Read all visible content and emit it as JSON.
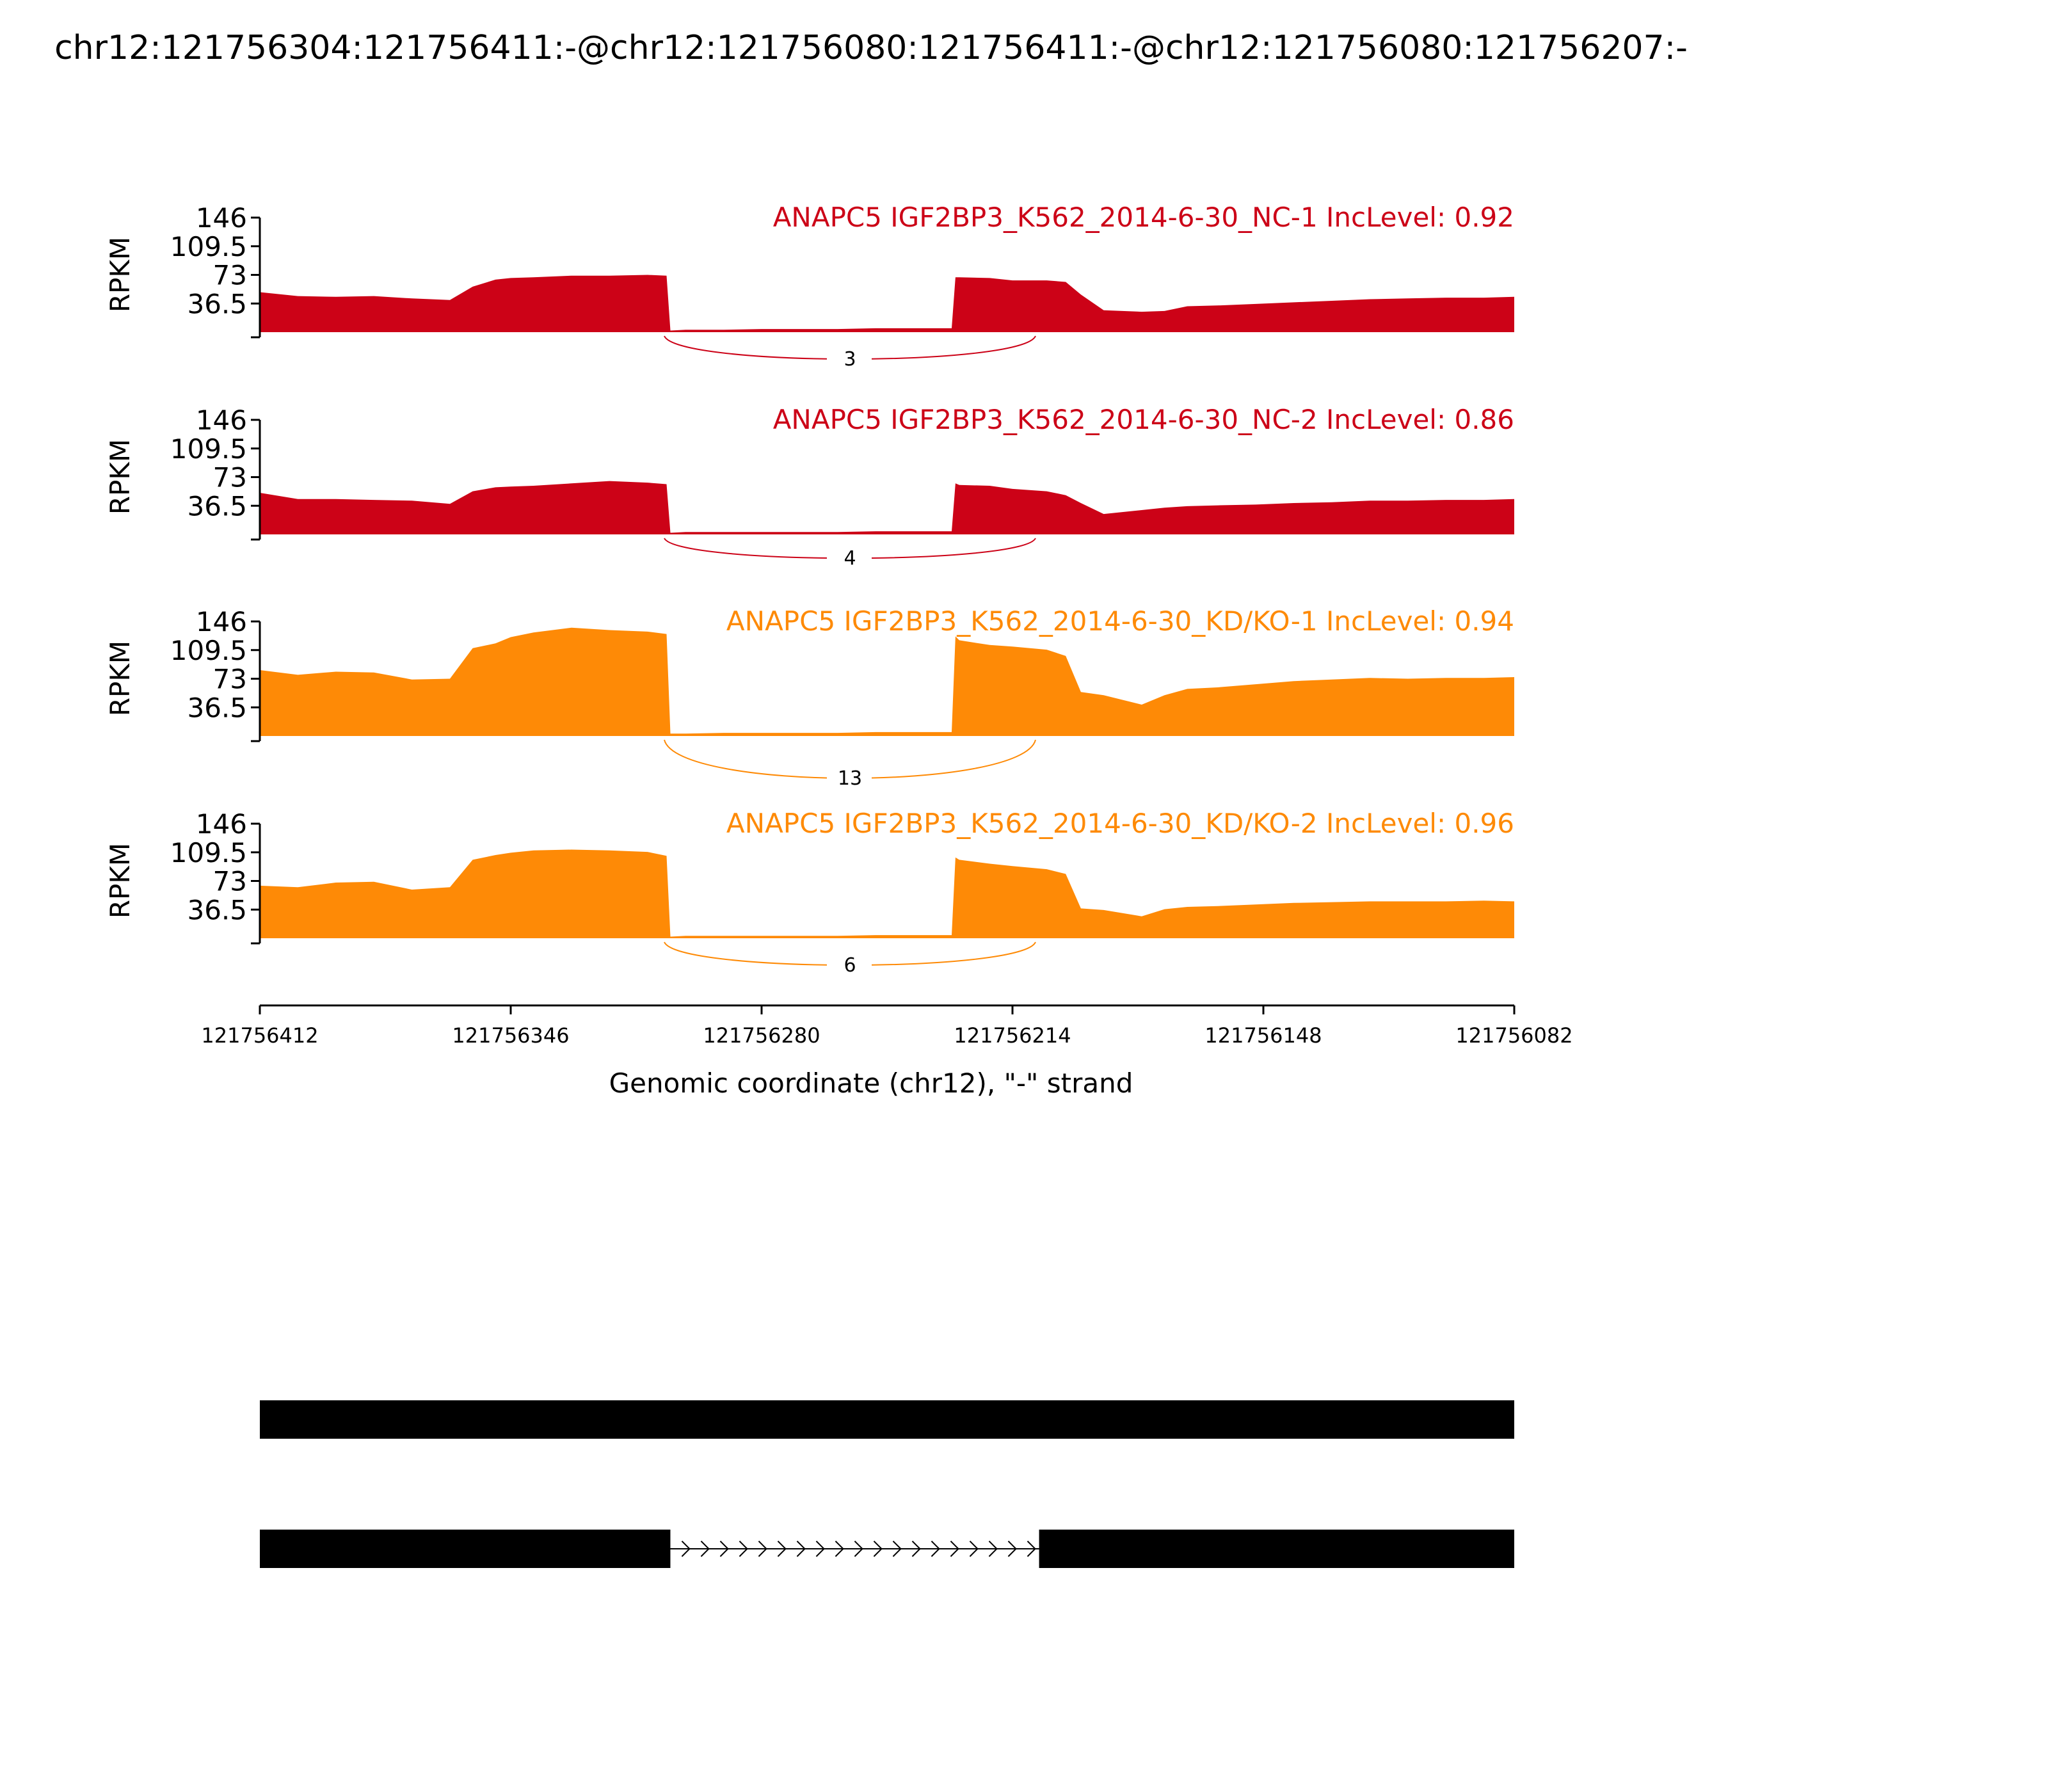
{
  "chart_data": {
    "type": "area",
    "title": "chr12:121756304:121756411:-@chr12:121756080:121756411:-@chr12:121756080:121756207:-",
    "ylabel": "RPKM",
    "xlabel": "Genomic coordinate (chr12), \"-\" strand",
    "ylim": [
      0,
      146
    ],
    "yticks": [
      "146",
      "109.5",
      "73",
      "36.5"
    ],
    "xlim": [
      121756412,
      121756082
    ],
    "xticks": [
      "121756412",
      "121756346",
      "121756280",
      "121756214",
      "121756148",
      "121756082"
    ],
    "x": [
      121756412,
      121756402,
      121756392,
      121756382,
      121756372,
      121756362,
      121756356,
      121756350,
      121756346,
      121756340,
      121756330,
      121756320,
      121756310,
      121756305,
      121756304,
      121756300,
      121756290,
      121756280,
      121756270,
      121756260,
      121756250,
      121756240,
      121756230,
      121756229,
      121756228,
      121756220,
      121756214,
      121756205,
      121756200,
      121756196,
      121756190,
      121756180,
      121756174,
      121756168,
      121756160,
      121756150,
      121756140,
      121756130,
      121756120,
      121756110,
      121756100,
      121756090,
      121756082
    ],
    "series": [
      {
        "name": "ANAPC5 IGF2BP3_K562_2014-6-30_NC-1 IncLevel: 0.92",
        "color": "#cc0217",
        "inclevel": 0.92,
        "junction_count": "3",
        "values": [
          51,
          46,
          45,
          46,
          43,
          41,
          58,
          67,
          69,
          70,
          72,
          72,
          73,
          72,
          2,
          3,
          3,
          4,
          4,
          4,
          5,
          5,
          5,
          70,
          70,
          69,
          66,
          66,
          64,
          48,
          28,
          26,
          27,
          33,
          34,
          36,
          38,
          40,
          42,
          43,
          44,
          44,
          45
        ]
      },
      {
        "name": "ANAPC5 IGF2BP3_K562_2014-6-30_NC-2 IncLevel: 0.86",
        "color": "#cc0217",
        "inclevel": 0.86,
        "junction_count": "4",
        "values": [
          53,
          45,
          45,
          44,
          43,
          39,
          55,
          60,
          61,
          62,
          65,
          68,
          66,
          64,
          2,
          3,
          3,
          3,
          3,
          3,
          4,
          4,
          4,
          65,
          63,
          62,
          58,
          55,
          50,
          40,
          26,
          31,
          34,
          36,
          37,
          38,
          40,
          41,
          43,
          43,
          44,
          44,
          45
        ]
      },
      {
        "name": "ANAPC5 IGF2BP3_K562_2014-6-30_KD/KO-1 IncLevel: 0.94",
        "color": "#fe8a06",
        "inclevel": 0.94,
        "junction_count": "13",
        "values": [
          84,
          78,
          82,
          81,
          72,
          73,
          112,
          118,
          126,
          132,
          138,
          135,
          133,
          130,
          3,
          3,
          4,
          4,
          4,
          4,
          5,
          5,
          5,
          127,
          122,
          116,
          114,
          110,
          102,
          56,
          52,
          40,
          52,
          60,
          62,
          66,
          70,
          72,
          74,
          73,
          74,
          74,
          75
        ]
      },
      {
        "name": "ANAPC5 IGF2BP3_K562_2014-6-30_KD/KO-2 IncLevel: 0.96",
        "color": "#fe8a06",
        "inclevel": 0.96,
        "junction_count": "6",
        "values": [
          67,
          65,
          71,
          72,
          62,
          65,
          100,
          106,
          109,
          112,
          113,
          112,
          110,
          105,
          2,
          3,
          3,
          3,
          3,
          3,
          4,
          4,
          4,
          103,
          100,
          95,
          92,
          88,
          82,
          38,
          36,
          28,
          37,
          40,
          41,
          43,
          45,
          46,
          47,
          47,
          47,
          48,
          47
        ]
      }
    ],
    "gene_models": [
      {
        "exons": [
          [
            121756412,
            121756082
          ]
        ]
      },
      {
        "exons": [
          [
            121756412,
            121756304
          ],
          [
            121756207,
            121756082
          ]
        ]
      }
    ]
  }
}
